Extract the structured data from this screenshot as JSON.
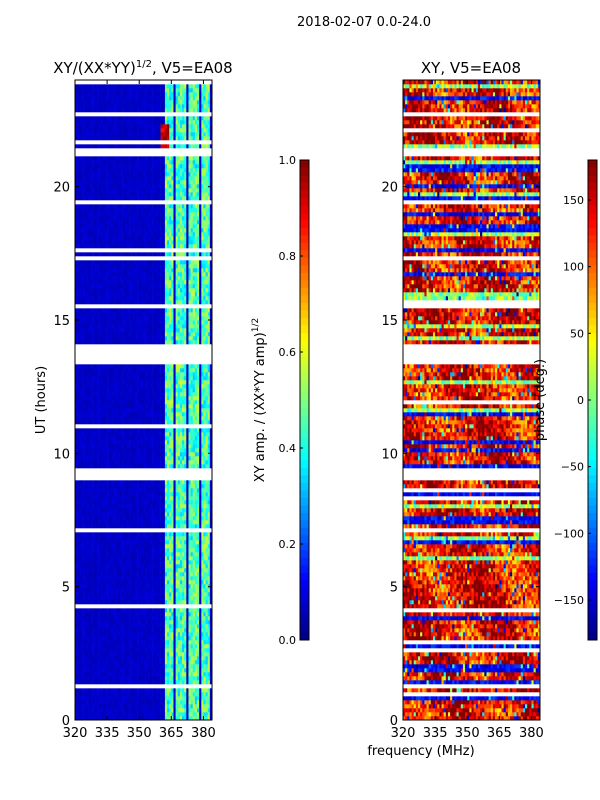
{
  "chart_data": [
    {
      "type": "heatmap",
      "suptitle": "2018-02-07 0.0-24.0",
      "title": "XY/(XX*YY)^{1/2}, V5=EA08",
      "title_main": "XY/(XX*YY)",
      "title_sup": "1/2",
      "title_tail": ", V5=EA08",
      "xlabel": "frequency (MHz)",
      "ylabel": "UT (hours)",
      "xlim": [
        320,
        384
      ],
      "ylim": [
        0,
        24
      ],
      "xticks": [
        "320",
        "335",
        "350",
        "365",
        "380"
      ],
      "yticks": [
        "0",
        "5",
        "10",
        "15",
        "20"
      ],
      "colormap": "jet",
      "colorbar": {
        "label": "XY amp. / (XX*YY amp)^1/2",
        "label_main": "XY amp. / (XX*YY amp)",
        "label_sup": "1/2",
        "range": [
          0.0,
          1.0
        ],
        "ticks": [
          "0.0",
          "0.2",
          "0.4",
          "0.6",
          "0.8",
          "1.0"
        ]
      },
      "background_level": 0.05,
      "high_bands_mhz": [
        [
          362,
          366
        ],
        [
          367.5,
          371.5
        ],
        [
          373,
          377.5
        ],
        [
          379,
          383
        ]
      ],
      "high_band_level": 0.45,
      "flagged_hours": [
        [
          21.1,
          21.5
        ],
        [
          13.35,
          14.1
        ],
        [
          9.0,
          9.45
        ],
        [
          7.0,
          7.25
        ],
        [
          1.25,
          1.32
        ],
        [
          4.3,
          4.38
        ],
        [
          5.8,
          5.86
        ],
        [
          15.5,
          15.56
        ],
        [
          17.3,
          17.36
        ],
        [
          19.4,
          19.46
        ],
        [
          22.7,
          22.76
        ]
      ]
    },
    {
      "type": "heatmap",
      "title": "XY, V5=EA08",
      "xlabel": "frequency (MHz)",
      "xlim": [
        320,
        384
      ],
      "ylim": [
        0,
        24
      ],
      "xticks": [
        "320",
        "335",
        "350",
        "365",
        "380"
      ],
      "yticks": [
        "0",
        "5",
        "10",
        "15",
        "20"
      ],
      "colormap": "jet",
      "colorbar": {
        "label": "phase (deg.)",
        "range": [
          -180,
          180
        ],
        "ticks": [
          "150",
          "100",
          "50",
          "0",
          "−50",
          "−100",
          "−150"
        ],
        "tick_values": [
          150,
          100,
          50,
          0,
          -50,
          -100,
          -150
        ]
      },
      "dominant_phase_deg": 140,
      "flagged_hours": [
        [
          21.1,
          21.5
        ],
        [
          13.35,
          14.1
        ],
        [
          9.0,
          9.45
        ],
        [
          7.0,
          7.25
        ],
        [
          1.25,
          1.32
        ],
        [
          4.3,
          4.38
        ],
        [
          5.8,
          5.86
        ],
        [
          15.5,
          15.56
        ],
        [
          17.3,
          17.36
        ],
        [
          19.4,
          19.46
        ],
        [
          22.7,
          22.76
        ]
      ]
    }
  ]
}
